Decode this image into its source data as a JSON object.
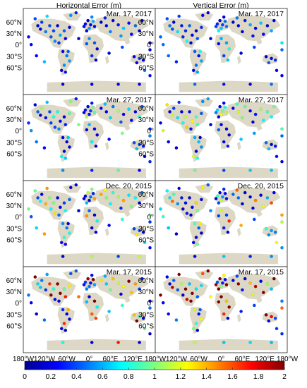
{
  "columns": [
    {
      "title": "Horizontal Error (m)"
    },
    {
      "title": "Vertical Error (m)"
    }
  ],
  "rows": [
    {
      "date": "Mar. 17, 2017"
    },
    {
      "date": "Mar. 27, 2017"
    },
    {
      "date": "Dec. 20, 2015"
    },
    {
      "date": "Mar. 17, 2015"
    }
  ],
  "lat_ticks": [
    "60°N",
    "30°N",
    "0°",
    "30°S",
    "60°S"
  ],
  "lat_values": [
    60,
    30,
    0,
    -30,
    -60
  ],
  "lon_tick_groups": [
    [
      "180°W",
      "120°W",
      "60°W",
      "0°",
      "60°E",
      "120°E",
      "180°W"
    ],
    [
      "120°W",
      "60°W",
      "0°",
      "60°E",
      "120°E",
      "180°W"
    ]
  ],
  "colorbar": {
    "ticks": [
      "0",
      "0.2",
      "0.4",
      "0.6",
      "0.8",
      "1",
      "1.2",
      "1.4",
      "1.6",
      "1.8",
      "2"
    ],
    "min": 0,
    "max": 2,
    "colormap": "jet"
  },
  "colors": {
    "land": "#ddd8c5",
    "ocean": "#ffffff",
    "frame": "#222222"
  }
}
